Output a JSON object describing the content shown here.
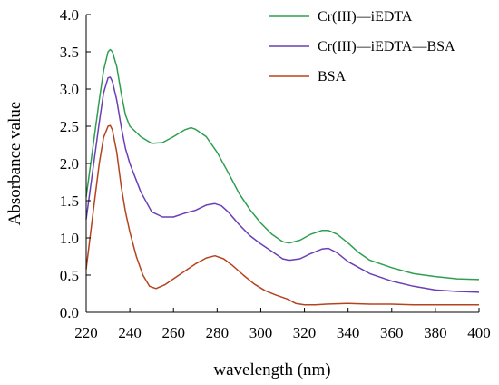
{
  "chart_data": {
    "type": "line",
    "xlabel": "wavelength (nm)",
    "ylabel": "Absorbance value",
    "xlim": [
      220,
      400
    ],
    "ylim": [
      0,
      4.0
    ],
    "x_ticks": [
      "220",
      "240",
      "260",
      "280",
      "300",
      "320",
      "340",
      "360",
      "380",
      "400"
    ],
    "y_ticks": [
      "0.0",
      "0.5",
      "1.0",
      "1.5",
      "2.0",
      "2.5",
      "3.0",
      "3.5",
      "4.0"
    ],
    "grid": false,
    "legend_position": "top-right",
    "series": [
      {
        "name": "Cr(III)—iEDTA",
        "color": "#2e9e4f",
        "points": [
          [
            220,
            1.55
          ],
          [
            223,
            2.2
          ],
          [
            226,
            2.85
          ],
          [
            228,
            3.25
          ],
          [
            230,
            3.5
          ],
          [
            231,
            3.53
          ],
          [
            232,
            3.5
          ],
          [
            234,
            3.3
          ],
          [
            236,
            2.95
          ],
          [
            238,
            2.65
          ],
          [
            240,
            2.5
          ],
          [
            245,
            2.36
          ],
          [
            250,
            2.27
          ],
          [
            255,
            2.28
          ],
          [
            260,
            2.36
          ],
          [
            265,
            2.45
          ],
          [
            268,
            2.48
          ],
          [
            270,
            2.46
          ],
          [
            275,
            2.36
          ],
          [
            280,
            2.15
          ],
          [
            285,
            1.88
          ],
          [
            290,
            1.6
          ],
          [
            295,
            1.38
          ],
          [
            300,
            1.2
          ],
          [
            305,
            1.05
          ],
          [
            310,
            0.95
          ],
          [
            313,
            0.93
          ],
          [
            318,
            0.97
          ],
          [
            323,
            1.05
          ],
          [
            328,
            1.1
          ],
          [
            331,
            1.1
          ],
          [
            335,
            1.05
          ],
          [
            340,
            0.93
          ],
          [
            345,
            0.8
          ],
          [
            350,
            0.7
          ],
          [
            360,
            0.6
          ],
          [
            370,
            0.52
          ],
          [
            380,
            0.48
          ],
          [
            390,
            0.45
          ],
          [
            400,
            0.44
          ]
        ]
      },
      {
        "name": "Cr(III)—iEDTA—BSA",
        "color": "#6a3fb5",
        "points": [
          [
            220,
            1.25
          ],
          [
            223,
            1.9
          ],
          [
            226,
            2.55
          ],
          [
            228,
            2.95
          ],
          [
            230,
            3.15
          ],
          [
            231,
            3.16
          ],
          [
            232,
            3.1
          ],
          [
            234,
            2.85
          ],
          [
            236,
            2.5
          ],
          [
            238,
            2.2
          ],
          [
            240,
            2.0
          ],
          [
            245,
            1.62
          ],
          [
            250,
            1.35
          ],
          [
            255,
            1.28
          ],
          [
            260,
            1.28
          ],
          [
            265,
            1.33
          ],
          [
            270,
            1.37
          ],
          [
            275,
            1.44
          ],
          [
            279,
            1.46
          ],
          [
            282,
            1.43
          ],
          [
            285,
            1.35
          ],
          [
            290,
            1.18
          ],
          [
            295,
            1.03
          ],
          [
            300,
            0.92
          ],
          [
            305,
            0.82
          ],
          [
            310,
            0.72
          ],
          [
            313,
            0.7
          ],
          [
            318,
            0.72
          ],
          [
            323,
            0.79
          ],
          [
            328,
            0.85
          ],
          [
            331,
            0.86
          ],
          [
            335,
            0.8
          ],
          [
            340,
            0.68
          ],
          [
            345,
            0.6
          ],
          [
            350,
            0.52
          ],
          [
            360,
            0.42
          ],
          [
            370,
            0.35
          ],
          [
            380,
            0.3
          ],
          [
            390,
            0.28
          ],
          [
            400,
            0.27
          ]
        ]
      },
      {
        "name": "BSA",
        "color": "#b5441e",
        "points": [
          [
            220,
            0.58
          ],
          [
            223,
            1.3
          ],
          [
            226,
            2.0
          ],
          [
            228,
            2.35
          ],
          [
            230,
            2.5
          ],
          [
            231,
            2.51
          ],
          [
            232,
            2.45
          ],
          [
            234,
            2.15
          ],
          [
            236,
            1.7
          ],
          [
            238,
            1.35
          ],
          [
            240,
            1.08
          ],
          [
            243,
            0.75
          ],
          [
            246,
            0.5
          ],
          [
            249,
            0.35
          ],
          [
            252,
            0.32
          ],
          [
            256,
            0.37
          ],
          [
            260,
            0.45
          ],
          [
            265,
            0.55
          ],
          [
            270,
            0.65
          ],
          [
            275,
            0.73
          ],
          [
            279,
            0.76
          ],
          [
            283,
            0.72
          ],
          [
            287,
            0.63
          ],
          [
            292,
            0.5
          ],
          [
            297,
            0.38
          ],
          [
            302,
            0.29
          ],
          [
            307,
            0.23
          ],
          [
            312,
            0.18
          ],
          [
            316,
            0.12
          ],
          [
            320,
            0.1
          ],
          [
            325,
            0.1
          ],
          [
            330,
            0.11
          ],
          [
            340,
            0.12
          ],
          [
            350,
            0.11
          ],
          [
            360,
            0.11
          ],
          [
            370,
            0.1
          ],
          [
            380,
            0.1
          ],
          [
            390,
            0.1
          ],
          [
            400,
            0.1
          ]
        ]
      }
    ]
  }
}
